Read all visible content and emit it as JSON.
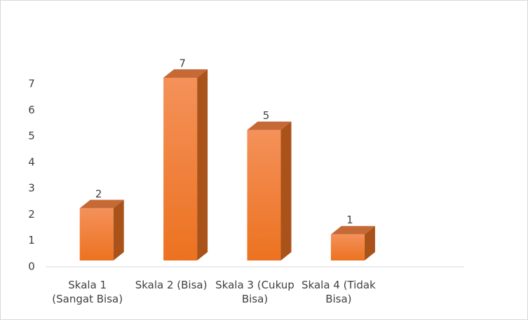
{
  "chart_data": {
    "type": "bar3d",
    "categories": [
      "Skala 1 (Sangat Bisa)",
      "Skala 2 (Bisa)",
      "Skala 3 (Cukup Bisa)",
      "Skala 4 (Tidak Bisa)"
    ],
    "values": [
      2,
      7,
      5,
      1
    ],
    "color": "#ed7d31",
    "ylim": [
      0,
      7
    ],
    "yticks": [
      0,
      1,
      2,
      3,
      4,
      5,
      6,
      7
    ],
    "grid": false
  }
}
